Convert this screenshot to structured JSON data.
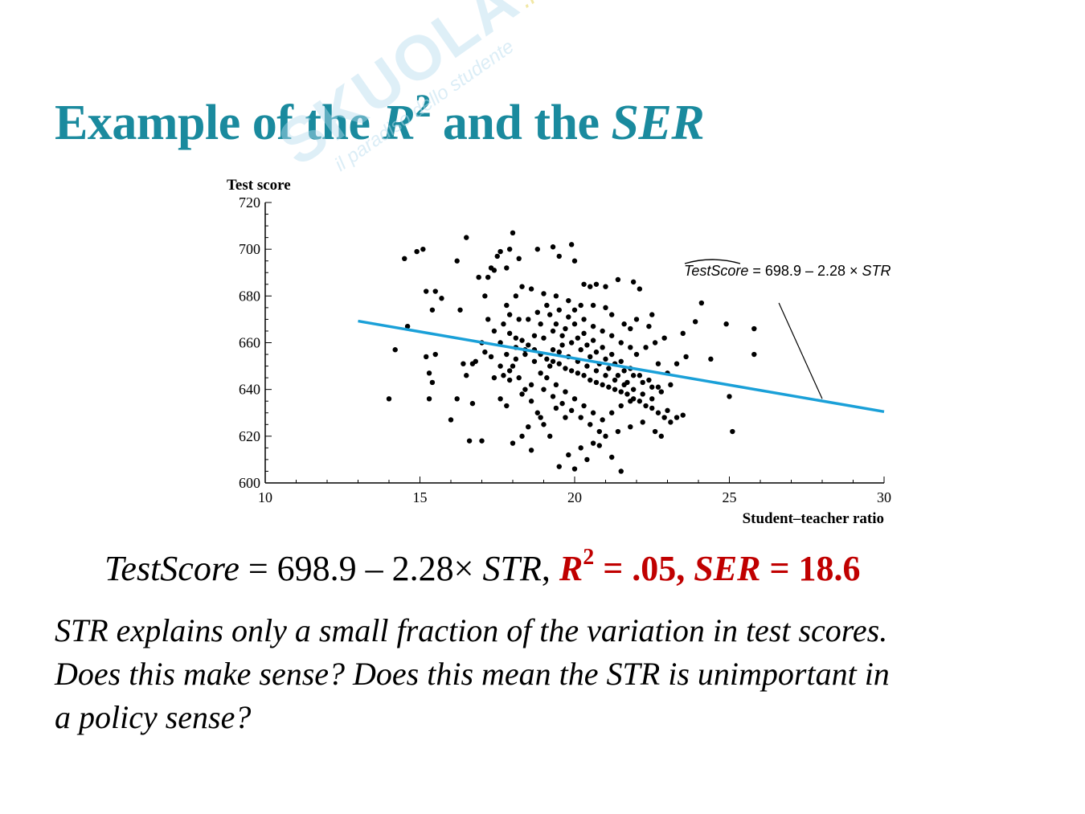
{
  "slide": {
    "title_prefix": "Example of the ",
    "title_r": "R",
    "title_sup": "2",
    "title_mid": " and the ",
    "title_ser": "SER",
    "watermark": "SKUOLA",
    "watermark_net": ".net",
    "watermark_sub": "il paradiso dello studente"
  },
  "equation": {
    "lhs": "TestScore",
    "eq": " = 698.9 – 2.28× ",
    "str": "STR",
    "comma": ", ",
    "r": "R",
    "r_sup": "2",
    "r_val": " = .05, ",
    "ser": "SER",
    "ser_val": " = 18.6"
  },
  "body_lines": [
    "STR explains only a small fraction of the variation in test scores.",
    "Does this make sense? Does this mean the STR is unimportant in",
    "a policy sense?"
  ],
  "chart_data": {
    "type": "scatter",
    "ylabel": "Test score",
    "xlabel": "Student–teacher ratio",
    "xlim": [
      10,
      30
    ],
    "ylim": [
      600,
      720
    ],
    "xticks": [
      10,
      15,
      20,
      25,
      30
    ],
    "yticks": [
      600,
      620,
      640,
      660,
      680,
      700,
      720
    ],
    "annotation": {
      "lhs": "TestScore",
      "rhs": " = 698.9 – 2.28 × ",
      "str": "STR",
      "arrow_from": [
        26.6,
        677
      ],
      "arrow_to": [
        28.0,
        636
      ]
    },
    "regression_line": {
      "intercept": 698.9,
      "slope": -2.28,
      "x_range": [
        13,
        30
      ],
      "color": "#1aa0d8"
    },
    "points": [
      [
        14.0,
        636
      ],
      [
        14.2,
        657
      ],
      [
        14.6,
        667
      ],
      [
        14.5,
        696
      ],
      [
        14.9,
        699
      ],
      [
        15.1,
        700
      ],
      [
        15.2,
        682
      ],
      [
        15.5,
        682
      ],
      [
        15.4,
        674
      ],
      [
        15.7,
        679
      ],
      [
        15.3,
        647
      ],
      [
        15.2,
        654
      ],
      [
        15.5,
        655
      ],
      [
        15.4,
        643
      ],
      [
        15.3,
        636
      ],
      [
        16.0,
        627
      ],
      [
        16.2,
        636
      ],
      [
        16.3,
        674
      ],
      [
        16.2,
        695
      ],
      [
        16.5,
        705
      ],
      [
        16.4,
        651
      ],
      [
        16.5,
        646
      ],
      [
        16.7,
        651
      ],
      [
        16.8,
        652
      ],
      [
        16.6,
        618
      ],
      [
        17.0,
        618
      ],
      [
        16.7,
        634
      ],
      [
        16.9,
        688
      ],
      [
        17.1,
        680
      ],
      [
        17.3,
        692
      ],
      [
        17.5,
        697
      ],
      [
        17.6,
        699
      ],
      [
        17.9,
        700
      ],
      [
        17.8,
        692
      ],
      [
        18.0,
        707
      ],
      [
        18.2,
        696
      ],
      [
        17.4,
        691
      ],
      [
        17.2,
        688
      ],
      [
        17.0,
        660
      ],
      [
        17.1,
        656
      ],
      [
        17.3,
        654
      ],
      [
        17.4,
        645
      ],
      [
        17.6,
        636
      ],
      [
        17.8,
        633
      ],
      [
        18.0,
        617
      ],
      [
        18.3,
        620
      ],
      [
        18.5,
        624
      ],
      [
        18.6,
        614
      ],
      [
        18.9,
        628
      ],
      [
        18.8,
        700
      ],
      [
        19.3,
        701
      ],
      [
        19.5,
        697
      ],
      [
        19.9,
        702
      ],
      [
        20.0,
        695
      ],
      [
        20.3,
        685
      ],
      [
        20.5,
        684
      ],
      [
        20.7,
        685
      ],
      [
        21.0,
        684
      ],
      [
        21.4,
        687
      ],
      [
        21.9,
        686
      ],
      [
        22.1,
        683
      ],
      [
        22.5,
        672
      ],
      [
        22.4,
        667
      ],
      [
        22.0,
        670
      ],
      [
        21.8,
        666
      ],
      [
        21.6,
        668
      ],
      [
        21.2,
        672
      ],
      [
        21.0,
        675
      ],
      [
        20.6,
        676
      ],
      [
        20.2,
        676
      ],
      [
        19.8,
        678
      ],
      [
        19.4,
        680
      ],
      [
        19.0,
        681
      ],
      [
        18.6,
        683
      ],
      [
        18.3,
        684
      ],
      [
        18.1,
        680
      ],
      [
        17.8,
        676
      ],
      [
        17.7,
        668
      ],
      [
        17.9,
        664
      ],
      [
        18.1,
        662
      ],
      [
        18.3,
        661
      ],
      [
        18.5,
        659
      ],
      [
        18.7,
        657
      ],
      [
        18.9,
        655
      ],
      [
        19.1,
        653
      ],
      [
        19.3,
        652
      ],
      [
        19.5,
        651
      ],
      [
        19.7,
        649
      ],
      [
        19.9,
        648
      ],
      [
        20.1,
        647
      ],
      [
        20.3,
        646
      ],
      [
        20.5,
        644
      ],
      [
        20.7,
        643
      ],
      [
        20.9,
        642
      ],
      [
        21.1,
        641
      ],
      [
        21.3,
        640
      ],
      [
        21.5,
        639
      ],
      [
        21.7,
        638
      ],
      [
        21.9,
        636
      ],
      [
        22.1,
        635
      ],
      [
        22.3,
        633
      ],
      [
        22.5,
        632
      ],
      [
        22.7,
        630
      ],
      [
        22.9,
        628
      ],
      [
        23.1,
        626
      ],
      [
        23.3,
        628
      ],
      [
        23.5,
        629
      ],
      [
        23.0,
        631
      ],
      [
        22.8,
        620
      ],
      [
        22.6,
        622
      ],
      [
        22.2,
        626
      ],
      [
        21.8,
        624
      ],
      [
        21.4,
        622
      ],
      [
        21.0,
        620
      ],
      [
        20.6,
        617
      ],
      [
        20.2,
        615
      ],
      [
        19.8,
        612
      ],
      [
        19.5,
        607
      ],
      [
        20.0,
        606
      ],
      [
        20.8,
        616
      ],
      [
        21.2,
        611
      ],
      [
        21.5,
        605
      ],
      [
        20.4,
        610
      ],
      [
        19.2,
        620
      ],
      [
        19.0,
        625
      ],
      [
        18.8,
        630
      ],
      [
        18.6,
        635
      ],
      [
        18.4,
        640
      ],
      [
        18.2,
        645
      ],
      [
        18.0,
        650
      ],
      [
        17.8,
        655
      ],
      [
        17.6,
        660
      ],
      [
        17.4,
        665
      ],
      [
        17.2,
        670
      ],
      [
        17.6,
        650
      ],
      [
        17.9,
        648
      ],
      [
        18.1,
        653
      ],
      [
        18.4,
        657
      ],
      [
        18.7,
        663
      ],
      [
        18.9,
        668
      ],
      [
        19.2,
        672
      ],
      [
        19.5,
        674
      ],
      [
        19.8,
        671
      ],
      [
        20.0,
        668
      ],
      [
        20.3,
        664
      ],
      [
        20.6,
        661
      ],
      [
        20.9,
        658
      ],
      [
        21.2,
        655
      ],
      [
        21.5,
        652
      ],
      [
        21.8,
        649
      ],
      [
        22.1,
        646
      ],
      [
        22.4,
        644
      ],
      [
        22.7,
        641
      ],
      [
        23.0,
        647
      ],
      [
        23.3,
        651
      ],
      [
        23.6,
        654
      ],
      [
        23.5,
        664
      ],
      [
        23.9,
        669
      ],
      [
        24.1,
        677
      ],
      [
        24.4,
        653
      ],
      [
        24.9,
        668
      ],
      [
        25.0,
        637
      ],
      [
        25.1,
        622
      ],
      [
        25.8,
        666
      ],
      [
        25.8,
        655
      ],
      [
        19.0,
        662
      ],
      [
        19.3,
        665
      ],
      [
        19.6,
        663
      ],
      [
        19.9,
        660
      ],
      [
        20.2,
        657
      ],
      [
        20.5,
        654
      ],
      [
        20.8,
        651
      ],
      [
        21.1,
        649
      ],
      [
        21.4,
        646
      ],
      [
        21.7,
        643
      ],
      [
        19.1,
        645
      ],
      [
        19.4,
        642
      ],
      [
        19.7,
        639
      ],
      [
        20.0,
        636
      ],
      [
        20.3,
        633
      ],
      [
        20.6,
        630
      ],
      [
        20.9,
        627
      ],
      [
        21.2,
        630
      ],
      [
        21.5,
        633
      ],
      [
        21.8,
        635
      ],
      [
        22.0,
        655
      ],
      [
        22.3,
        658
      ],
      [
        22.6,
        660
      ],
      [
        22.9,
        662
      ],
      [
        22.7,
        651
      ],
      [
        18.5,
        670
      ],
      [
        18.8,
        673
      ],
      [
        19.1,
        676
      ],
      [
        19.4,
        668
      ],
      [
        19.7,
        666
      ],
      [
        20.0,
        674
      ],
      [
        20.3,
        670
      ],
      [
        20.6,
        667
      ],
      [
        20.9,
        665
      ],
      [
        21.2,
        663
      ],
      [
        21.5,
        660
      ],
      [
        21.8,
        658
      ],
      [
        18.2,
        670
      ],
      [
        17.9,
        672
      ],
      [
        18.3,
        638
      ],
      [
        18.6,
        642
      ],
      [
        18.9,
        647
      ],
      [
        19.2,
        650
      ],
      [
        19.5,
        656
      ],
      [
        19.8,
        654
      ],
      [
        20.1,
        652
      ],
      [
        20.4,
        650
      ],
      [
        20.7,
        648
      ],
      [
        21.0,
        646
      ],
      [
        21.3,
        644
      ],
      [
        21.6,
        642
      ],
      [
        21.9,
        640
      ],
      [
        22.2,
        638
      ],
      [
        22.5,
        636
      ],
      [
        19.0,
        640
      ],
      [
        19.3,
        637
      ],
      [
        19.6,
        634
      ],
      [
        19.9,
        631
      ],
      [
        20.2,
        628
      ],
      [
        20.5,
        625
      ],
      [
        20.8,
        622
      ],
      [
        19.4,
        632
      ],
      [
        19.7,
        628
      ],
      [
        18.7,
        652
      ],
      [
        18.4,
        655
      ],
      [
        18.1,
        658
      ],
      [
        17.9,
        644
      ],
      [
        17.7,
        646
      ],
      [
        20.1,
        662
      ],
      [
        20.4,
        659
      ],
      [
        20.7,
        656
      ],
      [
        21.0,
        653
      ],
      [
        21.3,
        651
      ],
      [
        21.6,
        648
      ],
      [
        21.9,
        646
      ],
      [
        22.2,
        643
      ],
      [
        22.5,
        641
      ],
      [
        22.8,
        639
      ],
      [
        23.1,
        642
      ],
      [
        19.6,
        659
      ],
      [
        19.3,
        657
      ]
    ]
  }
}
